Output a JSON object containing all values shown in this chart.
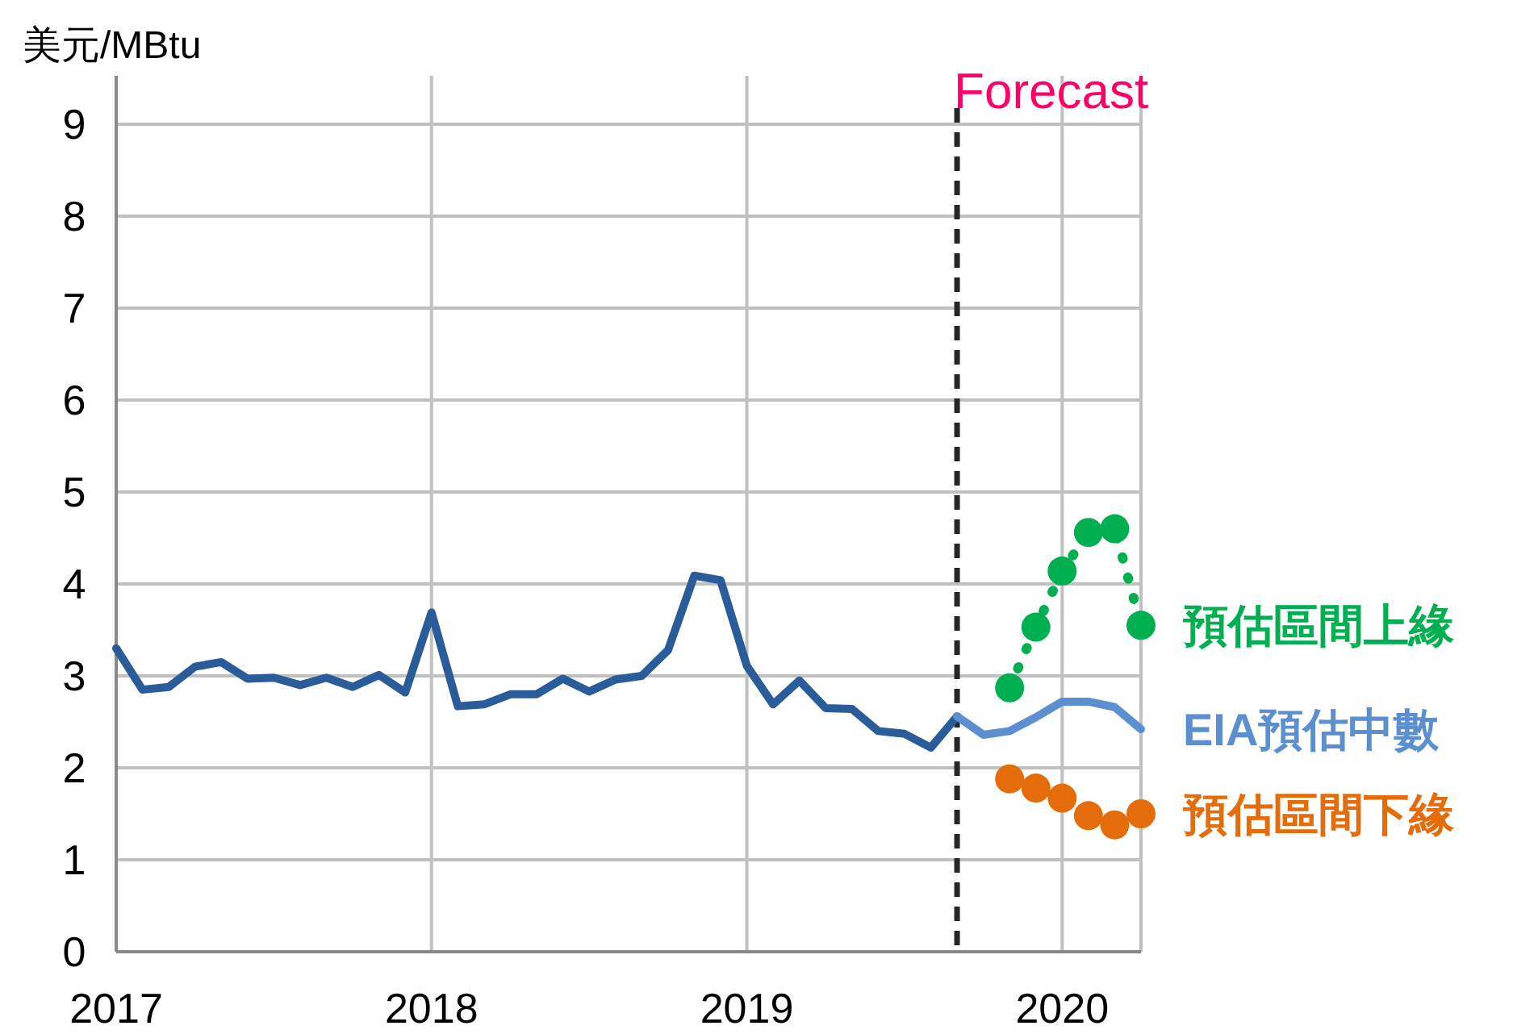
{
  "chart_data": {
    "type": "line",
    "ylabel": "美元/MBtu",
    "xlim": [
      "2017-01",
      "2020-04"
    ],
    "ylim": [
      0,
      9
    ],
    "xticks": [
      {
        "value": "2017-01",
        "label": "2017"
      },
      {
        "value": "2018-01",
        "label": "2018"
      },
      {
        "value": "2019-01",
        "label": "2019"
      },
      {
        "value": "2020-01",
        "label": "2020"
      }
    ],
    "yticks": [
      0,
      1,
      2,
      3,
      4,
      5,
      6,
      7,
      8,
      9
    ],
    "grid": true,
    "ref_lines": [
      {
        "axis": "x",
        "value": "2019-09",
        "label": "Forecast",
        "color": "#262626",
        "line_style": "dashed"
      }
    ],
    "series": [
      {
        "color": "#2a5c9a",
        "x": [
          "2017-01",
          "2017-02",
          "2017-03",
          "2017-04",
          "2017-05",
          "2017-06",
          "2017-07",
          "2017-08",
          "2017-09",
          "2017-10",
          "2017-11",
          "2017-12",
          "2018-01",
          "2018-02",
          "2018-03",
          "2018-04",
          "2018-05",
          "2018-06",
          "2018-07",
          "2018-08",
          "2018-09",
          "2018-10",
          "2018-11",
          "2018-12",
          "2019-01",
          "2019-02",
          "2019-03",
          "2019-04",
          "2019-05",
          "2019-06",
          "2019-07",
          "2019-08",
          "2019-09"
        ],
        "values": [
          3.3,
          2.85,
          2.88,
          3.1,
          3.15,
          2.97,
          2.98,
          2.9,
          2.98,
          2.88,
          3.01,
          2.82,
          3.69,
          2.67,
          2.69,
          2.8,
          2.8,
          2.97,
          2.83,
          2.96,
          3.0,
          3.28,
          4.09,
          4.04,
          3.11,
          2.69,
          2.95,
          2.65,
          2.64,
          2.4,
          2.37,
          2.22,
          2.56
        ]
      },
      {
        "name": "EIA預估中數",
        "color": "#5b8fd0",
        "x": [
          "2019-09",
          "2019-10",
          "2019-11",
          "2019-12",
          "2020-01",
          "2020-02",
          "2020-03",
          "2020-04"
        ],
        "values": [
          2.56,
          2.36,
          2.4,
          2.55,
          2.72,
          2.72,
          2.66,
          2.42
        ]
      },
      {
        "name": "預估區間上緣",
        "color": "#00b050",
        "marker": "circle",
        "line_style": "dotted",
        "x": [
          "2019-11",
          "2019-12",
          "2020-01",
          "2020-02",
          "2020-03",
          "2020-04"
        ],
        "values": [
          2.87,
          3.53,
          4.14,
          4.56,
          4.6,
          3.55
        ]
      },
      {
        "name": "預估區間下緣",
        "type": "scatter",
        "color": "#e46c0a",
        "marker": "circle",
        "x": [
          "2019-11",
          "2019-12",
          "2020-01",
          "2020-02",
          "2020-03",
          "2020-04"
        ],
        "values": [
          1.88,
          1.78,
          1.67,
          1.48,
          1.38,
          1.5
        ]
      }
    ]
  }
}
